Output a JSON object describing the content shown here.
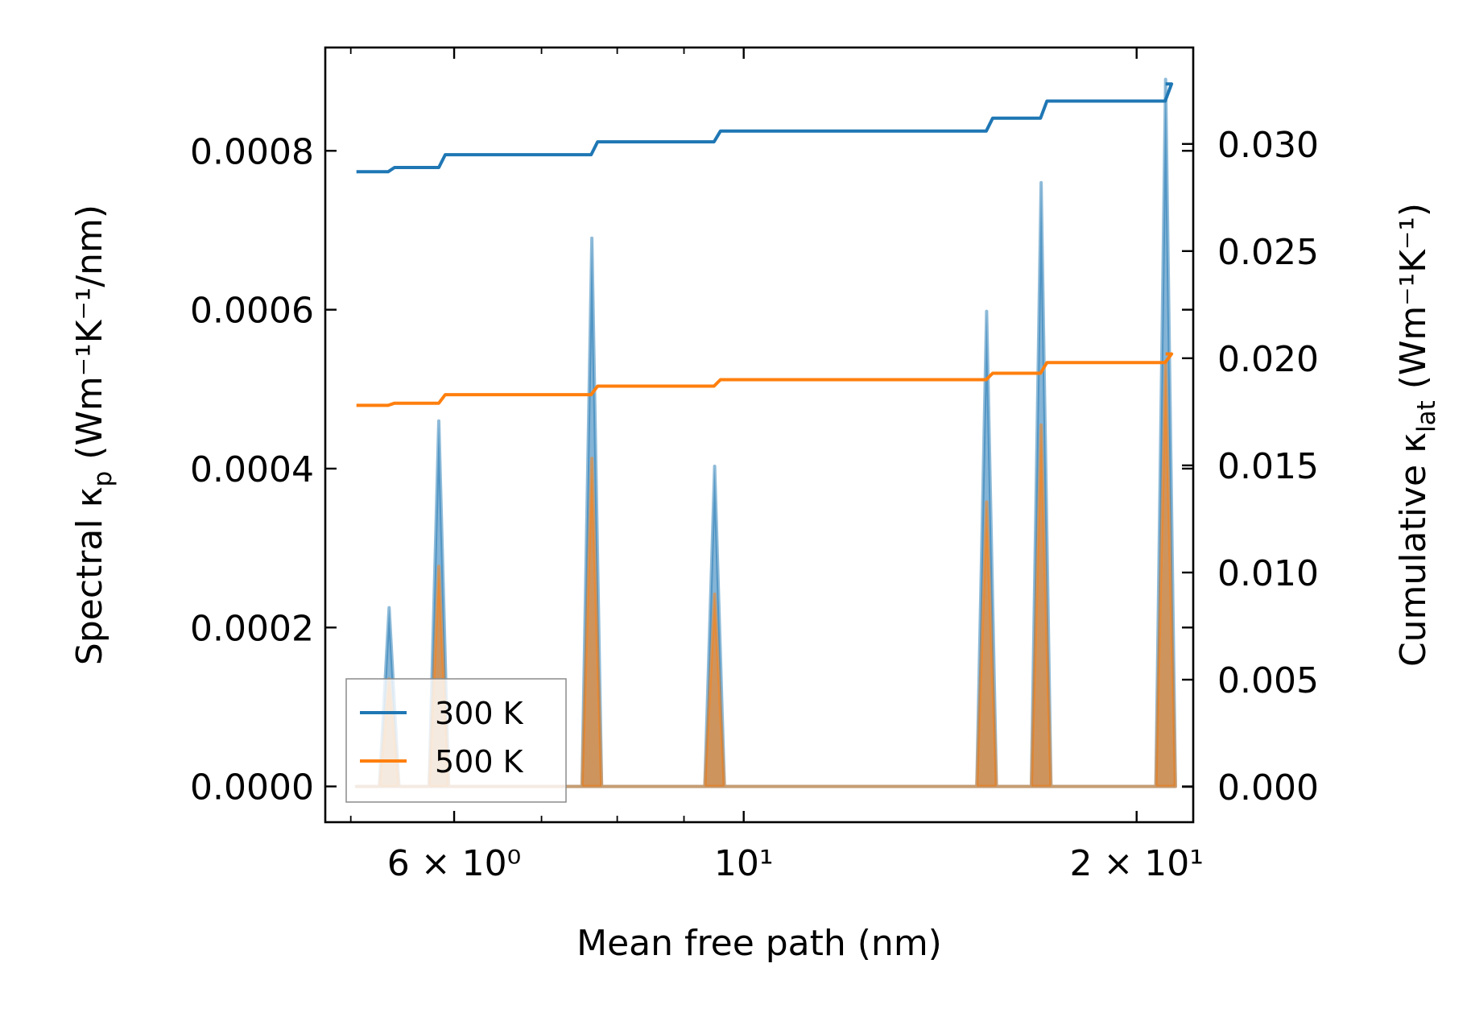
{
  "chart_data": {
    "type": "line",
    "title": "",
    "xlabel": "Mean free path (nm)",
    "ylabel": "Spectral κ",
    "ylabel_sub": "p",
    "ylabel_units": "(Wm⁻¹K⁻¹/nm)",
    "y2label": "Cumulative κ",
    "y2label_sub": "lat",
    "y2label_units": "(Wm⁻¹K⁻¹)",
    "xscale": "log",
    "xlim": [
      4.78,
      22.1
    ],
    "ylim": [
      -4.5e-05,
      0.00093
    ],
    "y2lim": [
      -0.00165,
      0.0345
    ],
    "xticks": [
      {
        "value": 6,
        "label": "6 × 10⁰"
      },
      {
        "value": 10,
        "label": "10¹"
      },
      {
        "value": 20,
        "label": "2 × 10¹"
      }
    ],
    "yticks": [
      {
        "value": 0.0,
        "label": "0.0000"
      },
      {
        "value": 0.0002,
        "label": "0.0002"
      },
      {
        "value": 0.0004,
        "label": "0.0004"
      },
      {
        "value": 0.0006,
        "label": "0.0006"
      },
      {
        "value": 0.0008,
        "label": "0.0008"
      }
    ],
    "y2ticks": [
      {
        "value": 0.0,
        "label": "0.000"
      },
      {
        "value": 0.005,
        "label": "0.005"
      },
      {
        "value": 0.01,
        "label": "0.010"
      },
      {
        "value": 0.015,
        "label": "0.015"
      },
      {
        "value": 0.02,
        "label": "0.020"
      },
      {
        "value": 0.025,
        "label": "0.025"
      },
      {
        "value": 0.03,
        "label": "0.030"
      }
    ],
    "x_start": 5.05,
    "x_end": 21.05,
    "series": [
      {
        "name": "300 K",
        "color": "#1f77b4",
        "spectral_peaks": [
          {
            "x": 5.35,
            "y": 0.000225
          },
          {
            "x": 5.84,
            "y": 0.00046
          },
          {
            "x": 7.65,
            "y": 0.00069
          },
          {
            "x": 9.5,
            "y": 0.000403
          },
          {
            "x": 15.35,
            "y": 0.000598
          },
          {
            "x": 16.9,
            "y": 0.00076
          },
          {
            "x": 21.05,
            "y": 0.00089
          }
        ],
        "cumulative_start": 0.0287,
        "cumulative_steps": [
          {
            "x": 5.34,
            "y": 0.0289
          },
          {
            "x": 5.84,
            "y": 0.0295
          },
          {
            "x": 7.64,
            "y": 0.0301
          },
          {
            "x": 9.49,
            "y": 0.0306
          },
          {
            "x": 15.34,
            "y": 0.0312
          },
          {
            "x": 16.88,
            "y": 0.032
          },
          {
            "x": 21.03,
            "y": 0.0328
          }
        ]
      },
      {
        "name": "500 K",
        "color": "#ff7f0e",
        "spectral_peaks": [
          {
            "x": 5.35,
            "y": 0.000135
          },
          {
            "x": 5.84,
            "y": 0.000277
          },
          {
            "x": 7.65,
            "y": 0.000413
          },
          {
            "x": 9.5,
            "y": 0.000242
          },
          {
            "x": 15.35,
            "y": 0.000358
          },
          {
            "x": 16.9,
            "y": 0.000455
          },
          {
            "x": 21.05,
            "y": 0.000535
          }
        ],
        "cumulative_start": 0.0178,
        "cumulative_steps": [
          {
            "x": 5.34,
            "y": 0.0179
          },
          {
            "x": 5.84,
            "y": 0.0183
          },
          {
            "x": 7.64,
            "y": 0.0187
          },
          {
            "x": 9.49,
            "y": 0.019
          },
          {
            "x": 15.34,
            "y": 0.0193
          },
          {
            "x": 16.88,
            "y": 0.0198
          },
          {
            "x": 21.03,
            "y": 0.0202
          }
        ]
      }
    ],
    "legend_location": "lower-left"
  }
}
